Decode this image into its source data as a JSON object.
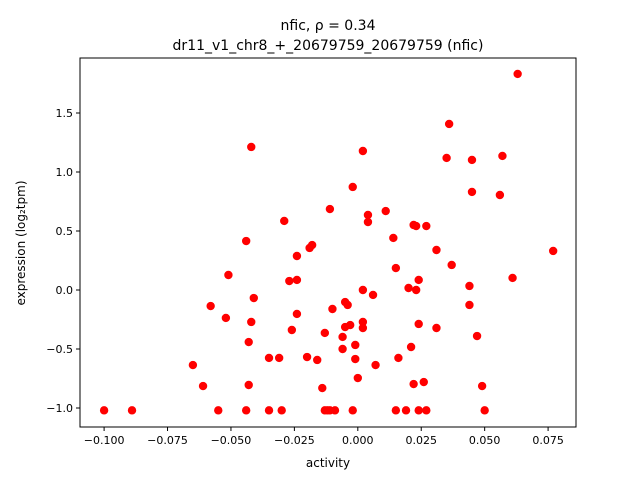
{
  "chart_data": {
    "type": "scatter",
    "title_line1": "nfic, ρ = 0.34",
    "title_line2": "dr11_v1_chr8_+_20679759_20679759 (nfic)",
    "xlabel": "activity",
    "ylabel": "expression (log₂tpm)",
    "xlim": [
      -0.1095,
      0.086
    ],
    "ylim": [
      -1.161,
      1.966
    ],
    "xticks": [
      -0.1,
      -0.075,
      -0.05,
      -0.025,
      0.0,
      0.025,
      0.05,
      0.075
    ],
    "xtick_labels": [
      "−0.100",
      "−0.075",
      "−0.050",
      "−0.025",
      "0.000",
      "0.025",
      "0.050",
      "0.075"
    ],
    "yticks": [
      -1.0,
      -0.5,
      0.0,
      0.5,
      1.0,
      1.5
    ],
    "ytick_labels": [
      "−1.0",
      "−0.5",
      "0.0",
      "0.5",
      "1.0",
      "1.5"
    ],
    "grid": false,
    "marker_color": "#ff0000",
    "points": [
      [
        -0.1,
        -1.02
      ],
      [
        -0.089,
        -1.02
      ],
      [
        -0.065,
        -0.636
      ],
      [
        -0.061,
        -0.814
      ],
      [
        -0.058,
        -0.136
      ],
      [
        -0.055,
        -1.02
      ],
      [
        -0.052,
        -0.237
      ],
      [
        -0.051,
        0.127
      ],
      [
        -0.044,
        0.415
      ],
      [
        -0.044,
        -1.02
      ],
      [
        -0.043,
        -0.441
      ],
      [
        -0.043,
        -0.805
      ],
      [
        -0.042,
        -0.271
      ],
      [
        -0.042,
        1.212
      ],
      [
        -0.041,
        -0.068
      ],
      [
        -0.035,
        -0.576
      ],
      [
        -0.035,
        -1.02
      ],
      [
        -0.031,
        -0.576
      ],
      [
        -0.03,
        -1.02
      ],
      [
        -0.029,
        0.585
      ],
      [
        -0.027,
        0.076
      ],
      [
        -0.026,
        -0.339
      ],
      [
        -0.024,
        -0.203
      ],
      [
        -0.024,
        0.288
      ],
      [
        -0.024,
        0.085
      ],
      [
        -0.02,
        -0.568
      ],
      [
        -0.019,
        0.356
      ],
      [
        -0.018,
        0.381
      ],
      [
        -0.016,
        -0.593
      ],
      [
        -0.014,
        -0.831
      ],
      [
        -0.013,
        -0.364
      ],
      [
        -0.013,
        -1.02
      ],
      [
        -0.012,
        -1.02
      ],
      [
        -0.011,
        -1.02
      ],
      [
        -0.01,
        -0.161
      ],
      [
        -0.009,
        -1.02
      ],
      [
        -0.011,
        0.686
      ],
      [
        -0.006,
        -0.5
      ],
      [
        -0.006,
        -0.398
      ],
      [
        -0.005,
        -0.102
      ],
      [
        -0.005,
        -0.314
      ],
      [
        -0.004,
        -0.127
      ],
      [
        -0.003,
        -0.297
      ],
      [
        -0.002,
        0.873
      ],
      [
        -0.002,
        -1.02
      ],
      [
        -0.001,
        -0.585
      ],
      [
        -0.001,
        -0.466
      ],
      [
        0.0,
        -0.746
      ],
      [
        0.002,
        1.178
      ],
      [
        0.002,
        -0.271
      ],
      [
        0.002,
        0.0
      ],
      [
        0.002,
        -0.322
      ],
      [
        0.004,
        0.576
      ],
      [
        0.004,
        0.636
      ],
      [
        0.006,
        -0.042
      ],
      [
        0.007,
        -0.636
      ],
      [
        0.011,
        0.669
      ],
      [
        0.014,
        0.441
      ],
      [
        0.015,
        0.186
      ],
      [
        0.015,
        -1.02
      ],
      [
        0.016,
        -0.576
      ],
      [
        0.019,
        -1.02
      ],
      [
        0.02,
        0.017
      ],
      [
        0.021,
        -0.483
      ],
      [
        0.022,
        0.551
      ],
      [
        0.022,
        -0.797
      ],
      [
        0.023,
        0.542
      ],
      [
        0.023,
        0.0
      ],
      [
        0.024,
        0.085
      ],
      [
        0.024,
        -1.02
      ],
      [
        0.024,
        -0.288
      ],
      [
        0.026,
        -0.78
      ],
      [
        0.027,
        0.542
      ],
      [
        0.027,
        -1.02
      ],
      [
        0.031,
        0.339
      ],
      [
        0.031,
        -0.322
      ],
      [
        0.035,
        1.119
      ],
      [
        0.036,
        1.407
      ],
      [
        0.037,
        0.212
      ],
      [
        0.044,
        0.034
      ],
      [
        0.044,
        -0.127
      ],
      [
        0.045,
        0.831
      ],
      [
        0.045,
        1.102
      ],
      [
        0.047,
        -0.39
      ],
      [
        0.049,
        -0.814
      ],
      [
        0.05,
        -1.02
      ],
      [
        0.056,
        0.805
      ],
      [
        0.057,
        1.136
      ],
      [
        0.061,
        0.102
      ],
      [
        0.063,
        1.831
      ],
      [
        0.077,
        0.331
      ]
    ]
  }
}
